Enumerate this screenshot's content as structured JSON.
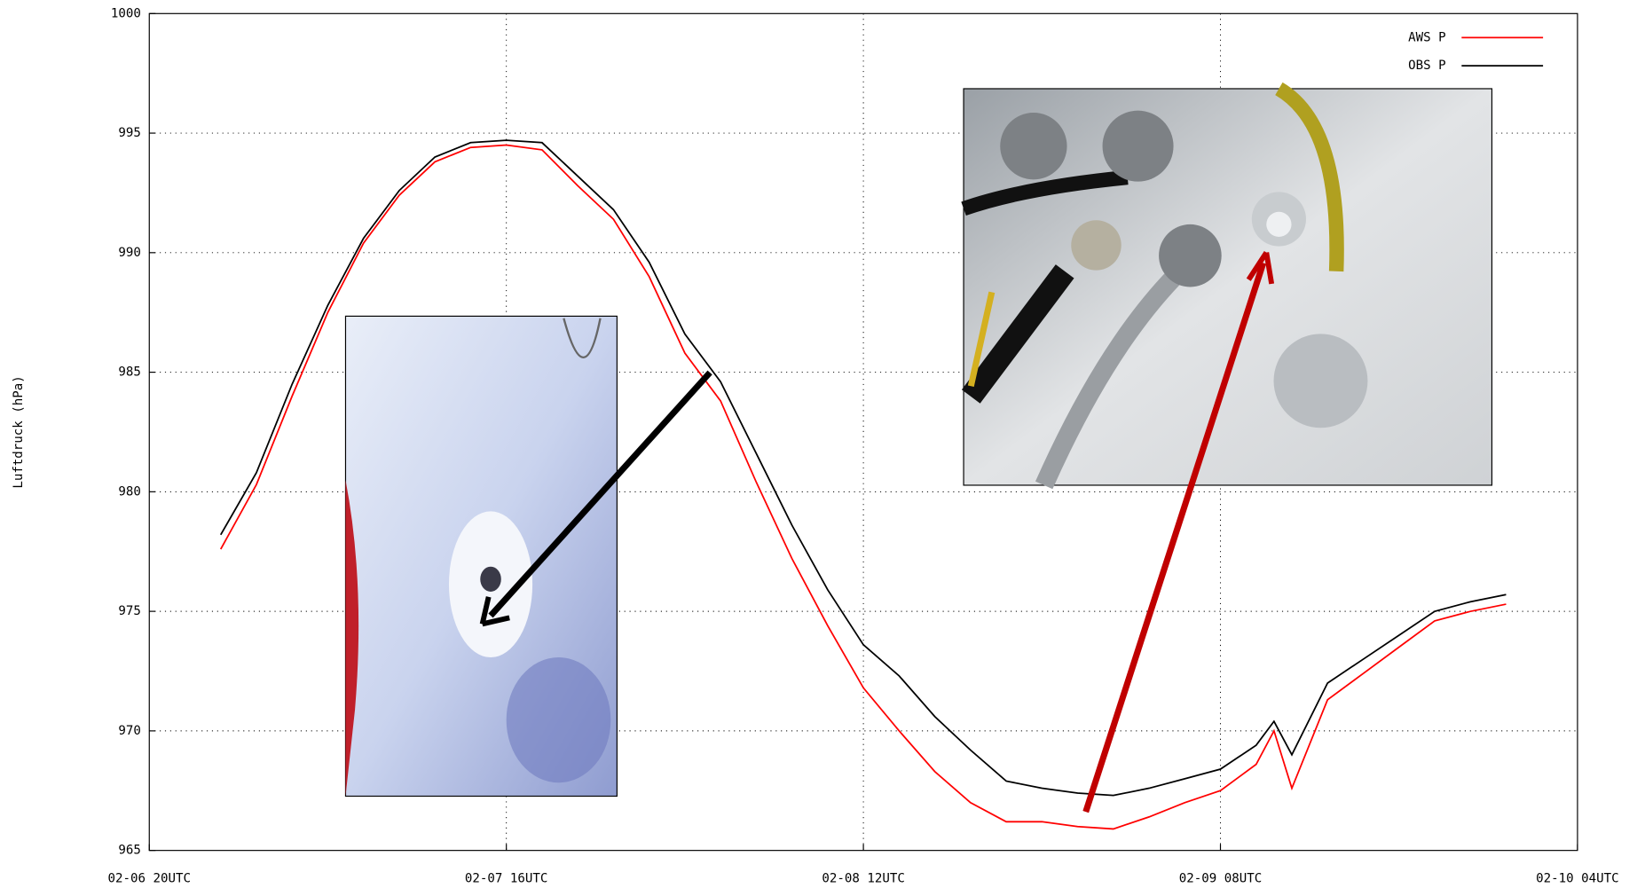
{
  "chart_data": {
    "type": "line",
    "ylabel": "Luftdruck (hPa)",
    "x": [
      "02-07 00UTC",
      "02-07 02UTC",
      "02-07 04UTC",
      "02-07 06UTC",
      "02-07 08UTC",
      "02-07 10UTC",
      "02-07 12UTC",
      "02-07 14UTC",
      "02-07 16UTC",
      "02-07 18UTC",
      "02-07 20UTC",
      "02-07 22UTC",
      "02-08 00UTC",
      "02-08 02UTC",
      "02-08 04UTC",
      "02-08 06UTC",
      "02-08 08UTC",
      "02-08 10UTC",
      "02-08 12UTC",
      "02-08 14UTC",
      "02-08 16UTC",
      "02-08 18UTC",
      "02-08 20UTC",
      "02-08 22UTC",
      "02-09 00UTC",
      "02-09 02UTC",
      "02-09 04UTC",
      "02-09 06UTC",
      "02-09 08UTC",
      "02-09 10UTC",
      "02-09 11UTC",
      "02-09 12UTC",
      "02-09 14UTC",
      "02-09 16UTC",
      "02-09 18UTC",
      "02-09 20UTC",
      "02-09 22UTC",
      "02-10 00UTC"
    ],
    "series": [
      {
        "name": "AWS P",
        "color": "#ff0000",
        "values": [
          977.6,
          980.3,
          984.0,
          987.5,
          990.4,
          992.4,
          993.8,
          994.4,
          994.5,
          994.3,
          992.8,
          991.4,
          989.0,
          985.8,
          983.8,
          980.4,
          977.2,
          974.4,
          971.8,
          970.0,
          968.3,
          967.0,
          966.2,
          966.2,
          966.0,
          965.9,
          966.4,
          967.0,
          967.5,
          968.6,
          970.0,
          967.6,
          971.3,
          972.4,
          973.5,
          974.6,
          975.0,
          975.3
        ]
      },
      {
        "name": "OBS P",
        "color": "#000000",
        "values": [
          978.2,
          980.8,
          984.5,
          987.8,
          990.6,
          992.6,
          994.0,
          994.6,
          994.7,
          994.6,
          993.2,
          991.8,
          989.6,
          986.6,
          984.6,
          981.6,
          978.6,
          975.9,
          973.6,
          972.3,
          970.6,
          969.2,
          967.9,
          967.6,
          967.4,
          967.3,
          967.6,
          968.0,
          968.4,
          969.4,
          970.4,
          969.0,
          972.0,
          973.0,
          974.0,
          975.0,
          975.4,
          975.7
        ]
      }
    ],
    "xlim": [
      "02-06 20UTC",
      "02-10 04UTC"
    ],
    "xticks": [
      "02-06 20UTC",
      "02-07 16UTC",
      "02-08 12UTC",
      "02-09 08UTC",
      "02-10 04UTC"
    ],
    "ylim": [
      965,
      1000
    ],
    "yticks": [
      965,
      970,
      975,
      980,
      985,
      990,
      995,
      1000
    ],
    "grid": true,
    "legend": "upper right"
  }
}
